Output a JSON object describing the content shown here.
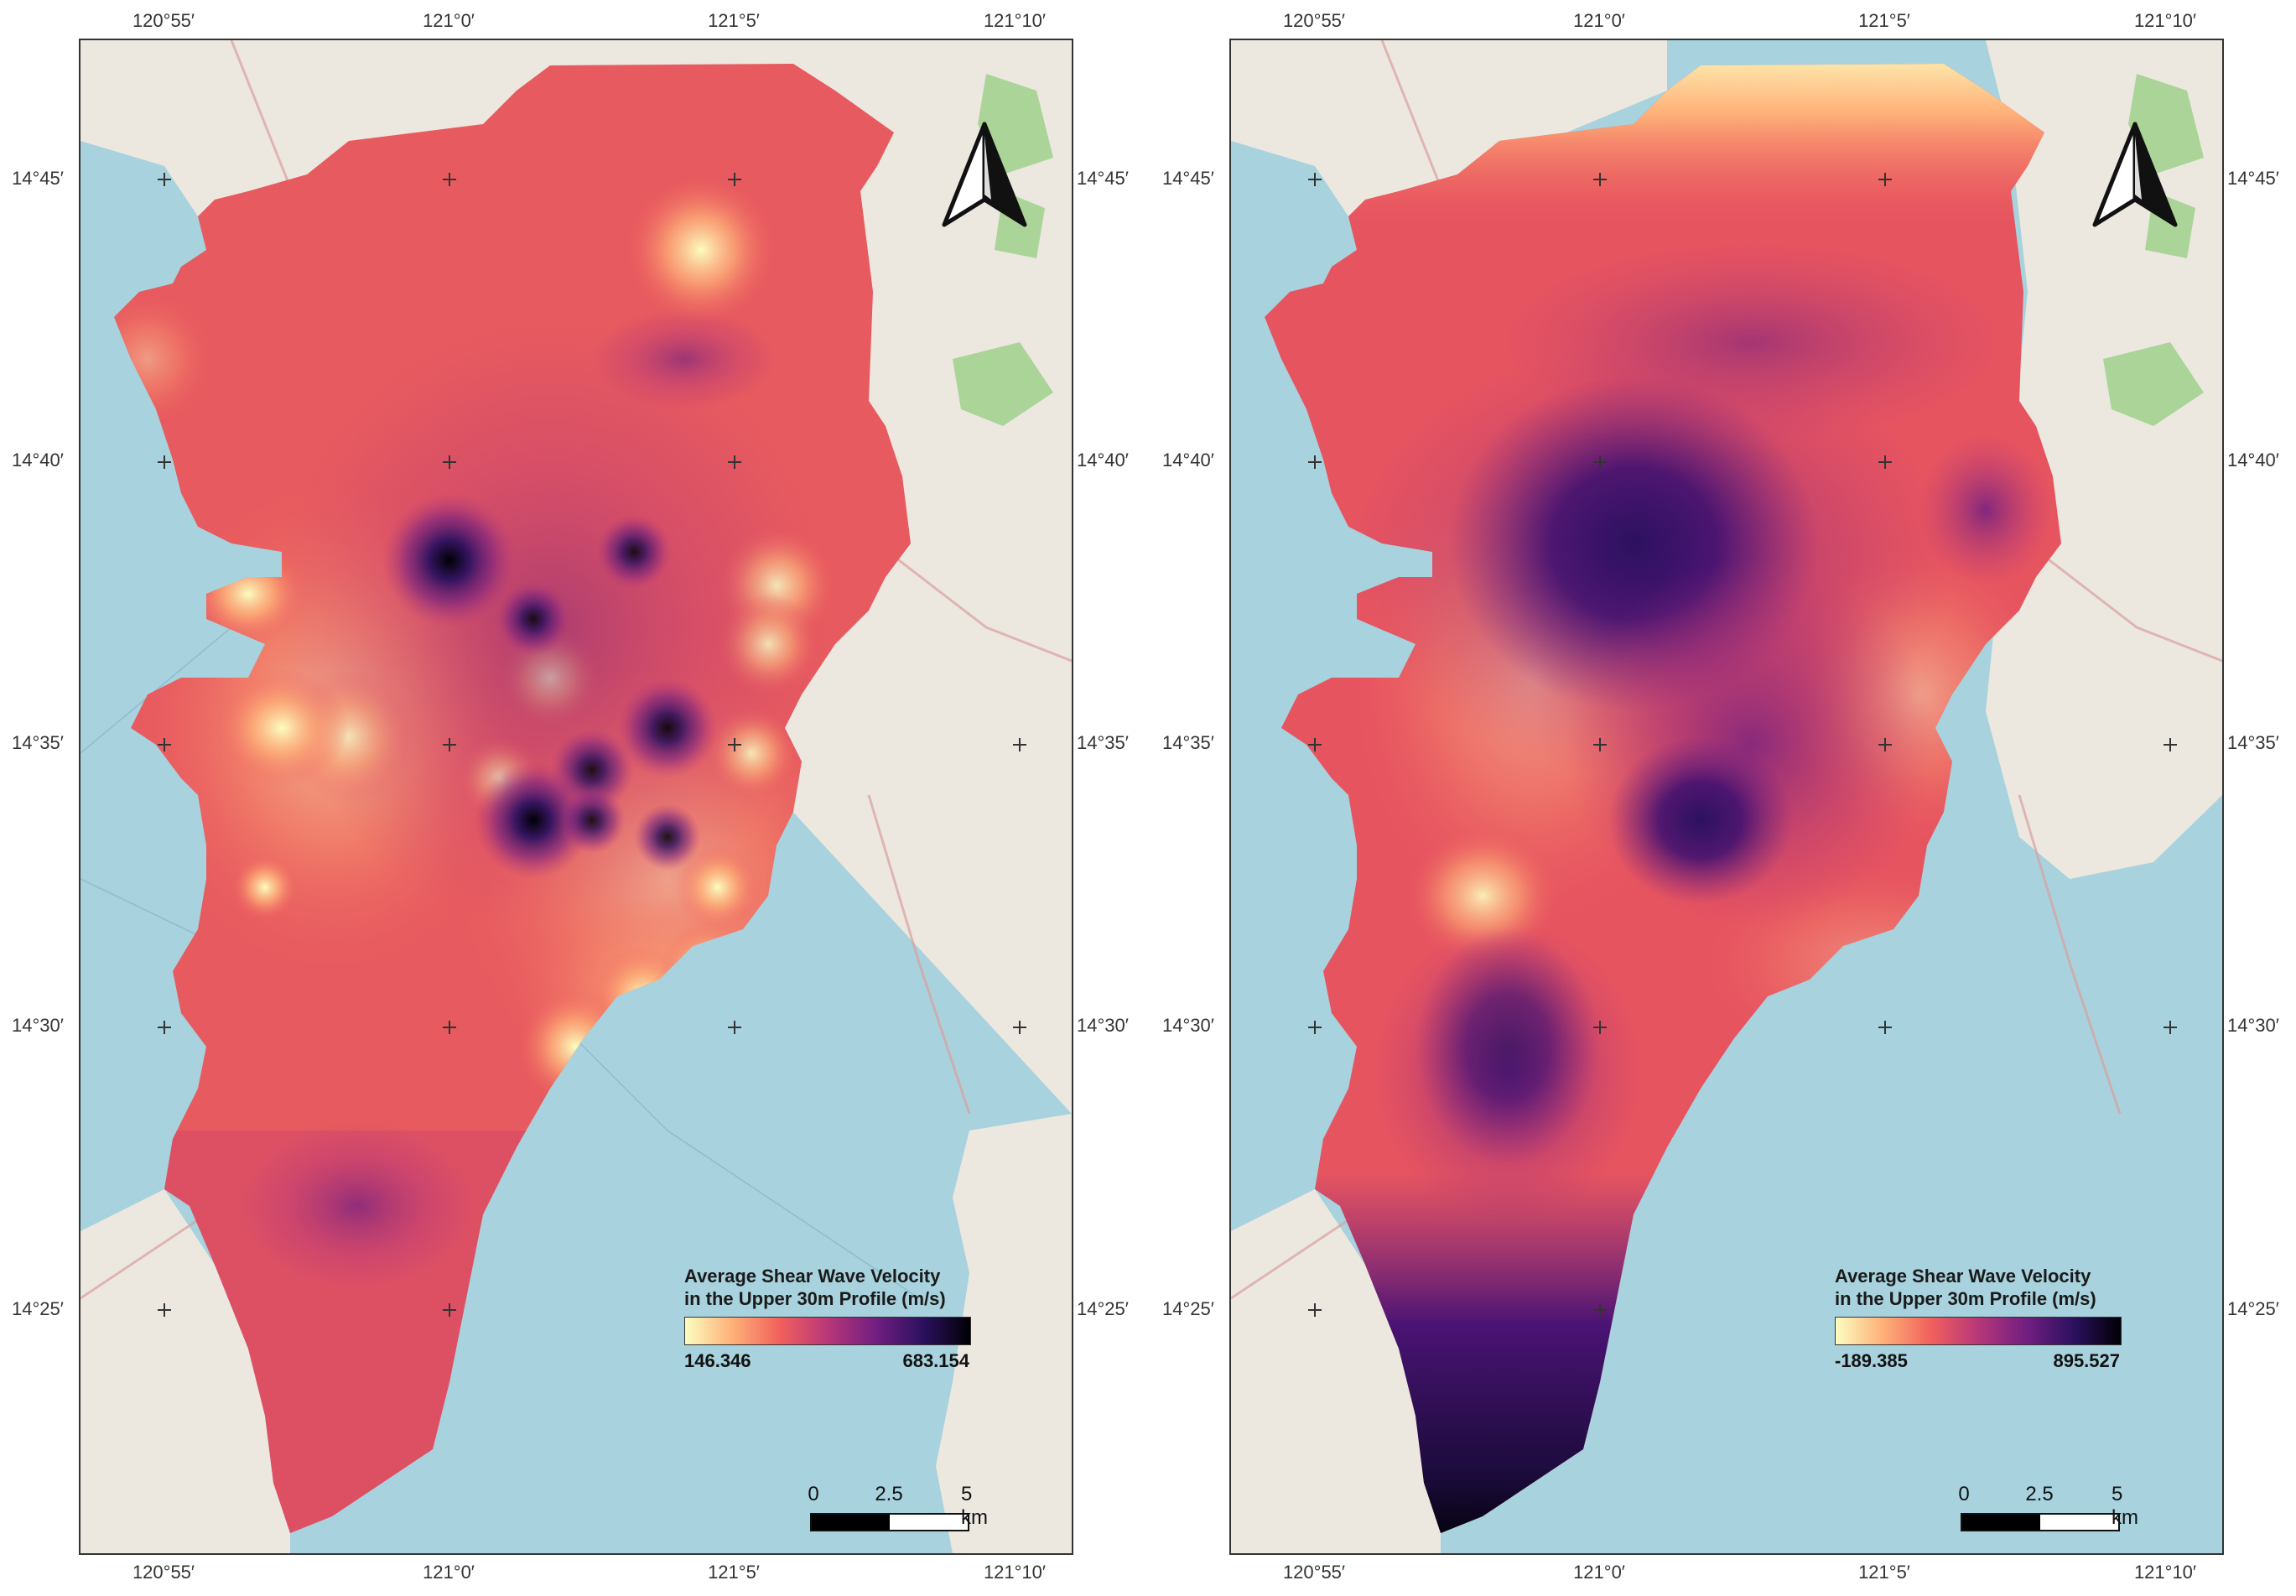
{
  "colors": {
    "water": "#a8d2dd",
    "land": "#ece8e0",
    "park": "#9fd08b",
    "magma_stops": [
      "#fcfdbf",
      "#feb078",
      "#f1605d",
      "#b73779",
      "#721f81",
      "#2c115f",
      "#000004"
    ]
  },
  "icons": {
    "north_arrow": "north-arrow-icon"
  },
  "axes": {
    "lat_ticks": [
      "14°45′",
      "14°40′",
      "14°35′",
      "14°30′",
      "14°25′"
    ],
    "lon_ticks": [
      "120°55′",
      "121°0′",
      "121°5′",
      "121°10′"
    ]
  },
  "maps": [
    {
      "legend": {
        "title_line1": "Average Shear Wave Velocity",
        "title_line2": "in the Upper 30m Profile (m/s)",
        "min": "146.346",
        "max": "683.154"
      },
      "scale": {
        "zero": "0",
        "mid": "2.5",
        "max": "5 km"
      }
    },
    {
      "legend": {
        "title_line1": "Average Shear Wave Velocity",
        "title_line2": "in the Upper 30m Profile (m/s)",
        "min": "-189.385",
        "max": "895.527"
      },
      "scale": {
        "zero": "0",
        "mid": "2.5",
        "max": "5 km"
      }
    }
  ]
}
